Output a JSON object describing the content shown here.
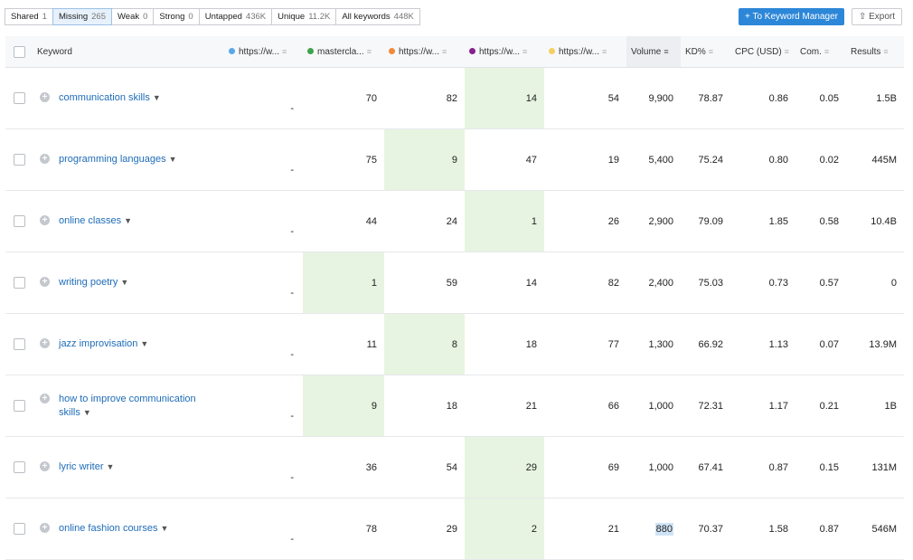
{
  "filters": [
    {
      "label": "Shared",
      "count": "1",
      "active": false
    },
    {
      "label": "Missing",
      "count": "265",
      "active": true
    },
    {
      "label": "Weak",
      "count": "0",
      "active": false
    },
    {
      "label": "Strong",
      "count": "0",
      "active": false
    },
    {
      "label": "Untapped",
      "count": "436K",
      "active": false
    },
    {
      "label": "Unique",
      "count": "11.2K",
      "active": false
    },
    {
      "label": "All keywords",
      "count": "448K",
      "active": false
    }
  ],
  "toolbar": {
    "keyword_manager_label": "To Keyword Manager",
    "export_label": "Export"
  },
  "colors": {
    "domain1": "#5aa7ea",
    "domain2": "#3fa34d",
    "domain3": "#f08a3b",
    "domain4": "#8a1f8f",
    "domain5": "#f4cf63",
    "highlight": "#e7f4e1",
    "accent": "#2d87d8"
  },
  "columns": {
    "keyword": "Keyword",
    "d1": "https://w...",
    "d2": "mastercla...",
    "d3": "https://w...",
    "d4": "https://w...",
    "d5": "https://w...",
    "volume": "Volume",
    "kd": "KD%",
    "cpc": "CPC (USD)",
    "com": "Com.",
    "results": "Results"
  },
  "rows": [
    {
      "keyword": "communication skills",
      "d1": "-",
      "d2": "70",
      "d3": "82",
      "d4": "14",
      "d5": "54",
      "volume": "9,900",
      "kd": "78.87",
      "cpc": "0.86",
      "com": "0.05",
      "results": "1.5B",
      "hl": "d4"
    },
    {
      "keyword": "programming languages",
      "d1": "-",
      "d2": "75",
      "d3": "9",
      "d4": "47",
      "d5": "19",
      "volume": "5,400",
      "kd": "75.24",
      "cpc": "0.80",
      "com": "0.02",
      "results": "445M",
      "hl": "d3"
    },
    {
      "keyword": "online classes",
      "d1": "-",
      "d2": "44",
      "d3": "24",
      "d4": "1",
      "d5": "26",
      "volume": "2,900",
      "kd": "79.09",
      "cpc": "1.85",
      "com": "0.58",
      "results": "10.4B",
      "hl": "d4"
    },
    {
      "keyword": "writing poetry",
      "d1": "-",
      "d2": "1",
      "d3": "59",
      "d4": "14",
      "d5": "82",
      "volume": "2,400",
      "kd": "75.03",
      "cpc": "0.73",
      "com": "0.57",
      "results": "0",
      "hl": "d2"
    },
    {
      "keyword": "jazz improvisation",
      "d1": "-",
      "d2": "11",
      "d3": "8",
      "d4": "18",
      "d5": "77",
      "volume": "1,300",
      "kd": "66.92",
      "cpc": "1.13",
      "com": "0.07",
      "results": "13.9M",
      "hl": "d3"
    },
    {
      "keyword": "how to improve communication skills",
      "kw_line1": "how to improve communication",
      "kw_line2": "skills",
      "d1": "-",
      "d2": "9",
      "d3": "18",
      "d4": "21",
      "d5": "66",
      "volume": "1,000",
      "kd": "72.31",
      "cpc": "1.17",
      "com": "0.21",
      "results": "1B",
      "hl": "d2"
    },
    {
      "keyword": "lyric writer",
      "d1": "-",
      "d2": "36",
      "d3": "54",
      "d4": "29",
      "d5": "69",
      "volume": "1,000",
      "kd": "67.41",
      "cpc": "0.87",
      "com": "0.15",
      "results": "131M",
      "hl": "d4"
    },
    {
      "keyword": "online fashion courses",
      "d1": "-",
      "d2": "78",
      "d3": "29",
      "d4": "2",
      "d5": "21",
      "volume": "880",
      "kd": "70.37",
      "cpc": "1.58",
      "com": "0.87",
      "results": "546M",
      "hl": "d4",
      "volume_selected": true
    }
  ]
}
